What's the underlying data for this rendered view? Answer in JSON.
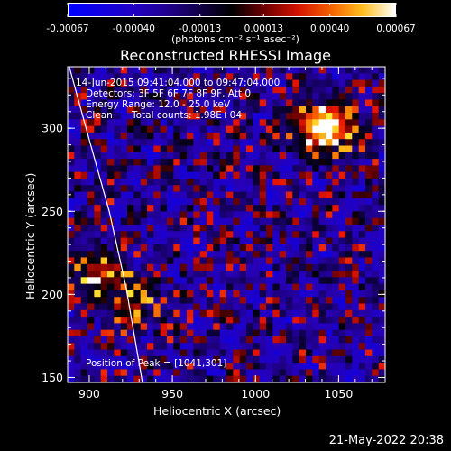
{
  "chart_data": {
    "type": "heatmap",
    "title": "Reconstructed RHESSI Image",
    "xlabel": "Heliocentric X (arcsec)",
    "ylabel": "Heliocentric Y (arcsec)",
    "xlim": [
      887,
      1078
    ],
    "ylim": [
      147,
      337
    ],
    "x_ticks": [
      "900",
      "950",
      "1000",
      "1050"
    ],
    "y_ticks": [
      "150",
      "200",
      "250",
      "300"
    ],
    "x_tick_values": [
      900,
      950,
      1000,
      1050
    ],
    "y_tick_values": [
      150,
      200,
      250,
      300
    ],
    "annotations": {
      "time_range": "14-Jun-2015 09:41:04.000 to 09:47:04.000",
      "detectors": "Detectors: 3F 5F 6F 7F 8F 9F, Att 0",
      "energy_range": "Energy Range: 12.0 - 25.0 keV",
      "method": "Clean",
      "total_counts": "Total counts: 1.98E+04",
      "peak_position": "Position of Peak = [1041,301]"
    },
    "peak": {
      "x": 1041,
      "y": 301
    },
    "colorbar": {
      "tick_labels": [
        "-0.00067",
        "-0.00040",
        "-0.00013",
        "0.00013",
        "0.00040",
        "0.00067"
      ],
      "tick_values": [
        -0.00067,
        -0.0004,
        -0.00013,
        0.00013,
        0.0004,
        0.00067
      ],
      "units_label": "(photons cm⁻² s⁻¹ asec⁻²)",
      "range": [
        -0.00067,
        0.00067
      ]
    },
    "limb_curve": [
      [
        888,
        337
      ],
      [
        900,
        293
      ],
      [
        912,
        250
      ],
      [
        922,
        205
      ],
      [
        928,
        170
      ],
      [
        932,
        147
      ]
    ],
    "bright_sources": [
      {
        "x": 1041,
        "y": 301,
        "rel_intensity": 1.0
      },
      {
        "x": 905,
        "y": 214,
        "rel_intensity": 0.45
      },
      {
        "x": 925,
        "y": 195,
        "rel_intensity": 0.35
      }
    ]
  },
  "timestamp": "21-May-2022 20:38",
  "colors": {
    "background": "#000000",
    "text": "#ffffff",
    "limb": "#ffffff"
  }
}
